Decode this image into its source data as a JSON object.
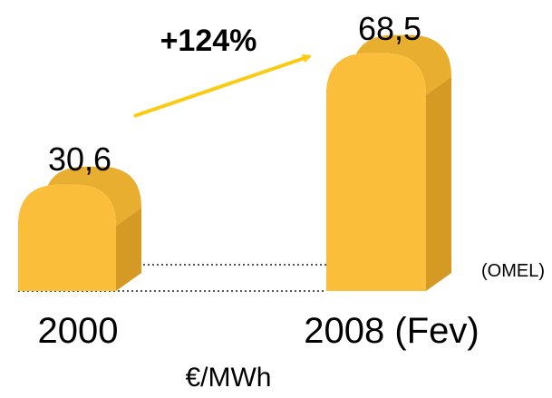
{
  "chart_data": {
    "type": "bar",
    "categories": [
      "2000",
      "2008 (Fev)"
    ],
    "values": [
      30.6,
      68.5
    ],
    "value_labels": [
      "30,6",
      "68,5"
    ],
    "unit": "€/MWh",
    "source": "(OMEL)",
    "growth_annotation": "+124%",
    "colors": {
      "bar_front": "#FBBE3A",
      "bar_side": "#D49A23",
      "bar_top": "#E7AE2F",
      "arrow": "#F9CC12",
      "baseline": "#555555"
    }
  }
}
